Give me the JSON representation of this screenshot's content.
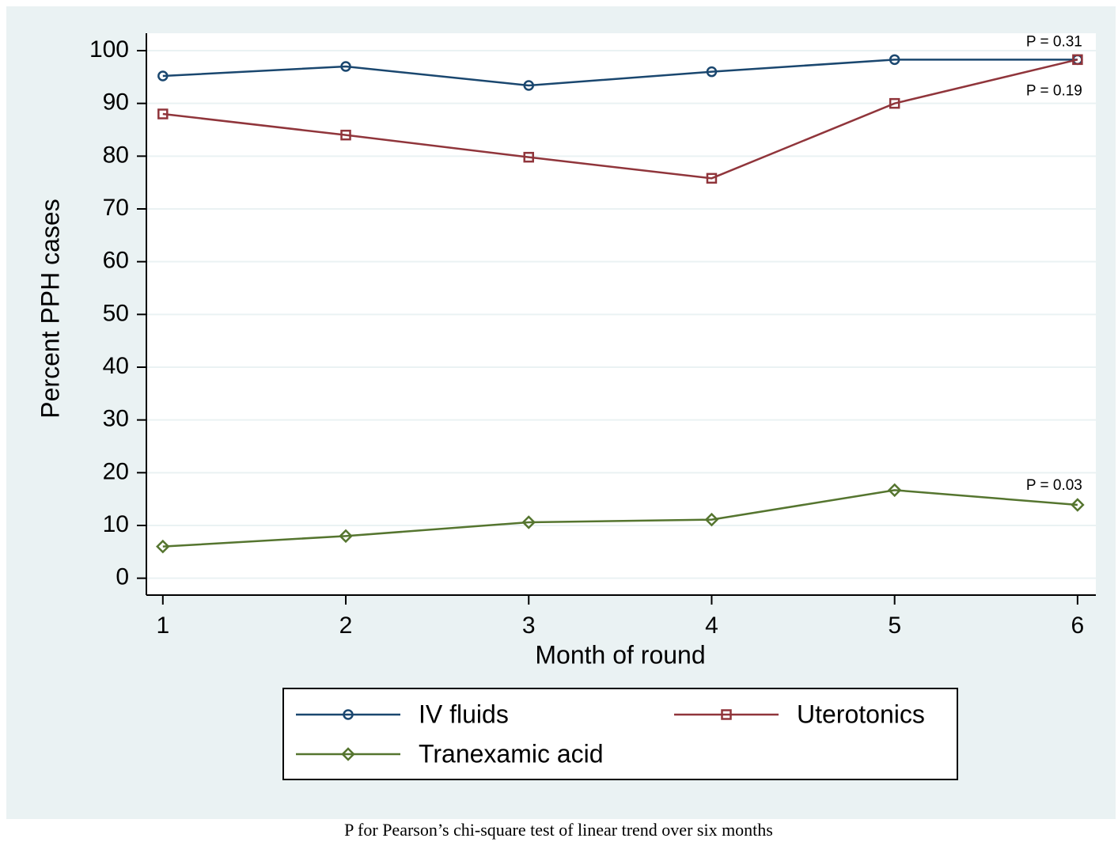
{
  "chart_data": {
    "type": "line",
    "x": [
      1,
      2,
      3,
      4,
      5,
      6
    ],
    "xlim": [
      0.91,
      6.1
    ],
    "xticks": [
      1,
      2,
      3,
      4,
      5,
      6
    ],
    "ylim": [
      -3.2,
      103.3
    ],
    "yticks": [
      0,
      10,
      20,
      30,
      40,
      50,
      60,
      70,
      80,
      90,
      100
    ],
    "grid": true,
    "x_label": "Month of round",
    "y_label": "Percent PPH cases",
    "legend": "bottom",
    "series": [
      {
        "name": "IV fluids",
        "color": "#1a476f",
        "marker": "circle",
        "values": [
          95.2,
          97,
          93.4,
          96,
          98.3,
          98.3
        ],
        "annotation": "P = 0.31"
      },
      {
        "name": "Uterotonics",
        "color": "#90353b",
        "marker": "square",
        "values": [
          88,
          84,
          79.8,
          75.8,
          90,
          98.3
        ],
        "annotation": "P = 0.19"
      },
      {
        "name": "Tranexamic acid",
        "color": "#55752f",
        "marker": "diamond",
        "values": [
          6,
          8,
          10.6,
          11.1,
          16.7,
          13.9
        ],
        "annotation": "P = 0.03"
      }
    ],
    "caption": "P for Pearson’s chi-square test of linear trend over six months"
  }
}
